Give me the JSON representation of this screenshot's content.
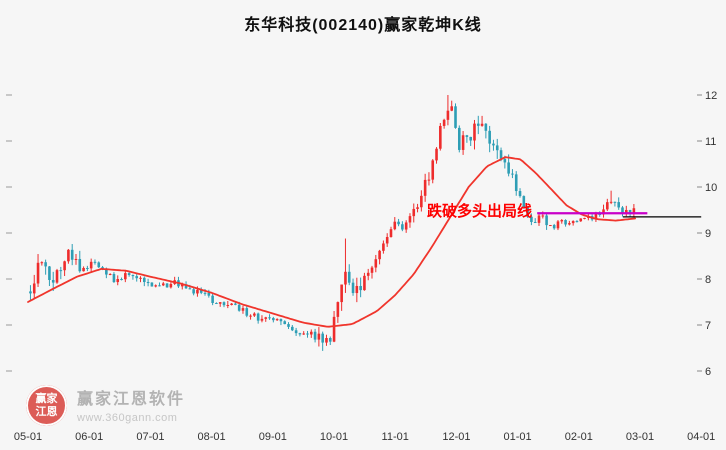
{
  "title": "东华科技(002140)赢家乾坤K线",
  "annotation": {
    "text": "跌破多头出局线",
    "color": "#fe0000"
  },
  "watermark": {
    "brand": "赢家江恩软件",
    "url": "www.360gann.com",
    "logo_line1": "赢家",
    "logo_line2": "江恩"
  },
  "chart_data": {
    "type": "candlestick",
    "title": "东华科技(002140)赢家乾坤K线",
    "xlabel": "",
    "ylabel": "",
    "ylim": [
      6,
      12.6
    ],
    "grid": false,
    "x_tick_labels": [
      "05-01",
      "06-01",
      "07-01",
      "08-01",
      "09-01",
      "10-01",
      "11-01",
      "12-01",
      "01-01",
      "02-01",
      "03-01",
      "04-01"
    ],
    "y_tick_labels": [
      "12",
      "11",
      "10",
      "9",
      "8",
      "7",
      "6"
    ],
    "colors": {
      "up": "#ee2c2c",
      "down": "#2e9eb5",
      "ma": "#f0352c"
    },
    "series": {
      "candle_count": 160,
      "candle_span_months": [
        0.04,
        9.9
      ],
      "price_anchors": [
        [
          0.0,
          7.45
        ],
        [
          0.08,
          7.9
        ],
        [
          0.18,
          8.6
        ],
        [
          0.28,
          8.2
        ],
        [
          0.4,
          7.95
        ],
        [
          0.55,
          8.3
        ],
        [
          0.7,
          8.6
        ],
        [
          0.85,
          8.15
        ],
        [
          1.05,
          8.35
        ],
        [
          1.25,
          8.15
        ],
        [
          1.45,
          7.95
        ],
        [
          1.65,
          8.1
        ],
        [
          1.9,
          7.9
        ],
        [
          2.15,
          7.8
        ],
        [
          2.35,
          7.95
        ],
        [
          2.6,
          7.8
        ],
        [
          2.85,
          7.65
        ],
        [
          3.1,
          7.5
        ],
        [
          3.35,
          7.4
        ],
        [
          3.6,
          7.25
        ],
        [
          3.85,
          7.1
        ],
        [
          4.1,
          7.05
        ],
        [
          4.35,
          6.9
        ],
        [
          4.6,
          6.8
        ],
        [
          4.82,
          6.66
        ],
        [
          4.95,
          6.78
        ],
        [
          5.05,
          7.35
        ],
        [
          5.18,
          8.05
        ],
        [
          5.28,
          7.7
        ],
        [
          5.45,
          7.95
        ],
        [
          5.65,
          8.3
        ],
        [
          5.85,
          8.85
        ],
        [
          6.0,
          9.3
        ],
        [
          6.12,
          9.15
        ],
        [
          6.3,
          9.5
        ],
        [
          6.5,
          10.1
        ],
        [
          6.68,
          10.9
        ],
        [
          6.85,
          11.75
        ],
        [
          6.95,
          11.55
        ],
        [
          7.05,
          10.95
        ],
        [
          7.2,
          11.1
        ],
        [
          7.35,
          11.4
        ],
        [
          7.5,
          11.2
        ],
        [
          7.65,
          10.8
        ],
        [
          7.8,
          10.45
        ],
        [
          7.95,
          10.1
        ],
        [
          8.1,
          9.6
        ],
        [
          8.25,
          9.2
        ],
        [
          8.4,
          9.35
        ],
        [
          8.55,
          9.1
        ],
        [
          8.7,
          9.28
        ],
        [
          8.85,
          9.2
        ],
        [
          9.0,
          9.3
        ],
        [
          9.15,
          9.32
        ],
        [
          9.3,
          9.38
        ],
        [
          9.45,
          9.55
        ],
        [
          9.55,
          9.8
        ],
        [
          9.65,
          9.5
        ],
        [
          9.8,
          9.52
        ],
        [
          9.9,
          9.5
        ]
      ],
      "spikes": [
        {
          "m": 5.18,
          "high": 8.88
        },
        {
          "m": 6.86,
          "high": 12.0
        },
        {
          "m": 9.53,
          "high": 9.92
        }
      ],
      "volatility_segments": [
        [
          0.0,
          0.9,
          0.22
        ],
        [
          0.9,
          4.7,
          0.1
        ],
        [
          4.7,
          5.5,
          0.22
        ],
        [
          5.5,
          6.3,
          0.14
        ],
        [
          6.3,
          7.9,
          0.22
        ],
        [
          7.9,
          8.6,
          0.12
        ],
        [
          8.6,
          9.35,
          0.07
        ],
        [
          9.35,
          9.95,
          0.12
        ]
      ],
      "ma_anchors": [
        [
          0.0,
          7.5
        ],
        [
          0.4,
          7.78
        ],
        [
          0.8,
          8.05
        ],
        [
          1.2,
          8.22
        ],
        [
          1.6,
          8.18
        ],
        [
          2.0,
          8.05
        ],
        [
          2.5,
          7.9
        ],
        [
          3.0,
          7.7
        ],
        [
          3.5,
          7.45
        ],
        [
          4.0,
          7.25
        ],
        [
          4.5,
          7.05
        ],
        [
          4.9,
          6.96
        ],
        [
          5.3,
          7.02
        ],
        [
          5.7,
          7.3
        ],
        [
          6.0,
          7.65
        ],
        [
          6.3,
          8.1
        ],
        [
          6.6,
          8.7
        ],
        [
          6.9,
          9.35
        ],
        [
          7.2,
          10.0
        ],
        [
          7.5,
          10.45
        ],
        [
          7.8,
          10.65
        ],
        [
          8.05,
          10.6
        ],
        [
          8.3,
          10.3
        ],
        [
          8.55,
          9.95
        ],
        [
          8.8,
          9.6
        ],
        [
          9.05,
          9.4
        ],
        [
          9.3,
          9.3
        ],
        [
          9.6,
          9.27
        ],
        [
          9.95,
          9.32
        ]
      ]
    },
    "levels": {
      "exit_line": {
        "price": 9.43,
        "from_month": 8.32,
        "to_month": 10.12,
        "color": "#c800c8"
      },
      "last_price_line": {
        "price": 9.35,
        "from_month": 9.72,
        "to_month": 11.0,
        "color": "#000000"
      }
    }
  }
}
